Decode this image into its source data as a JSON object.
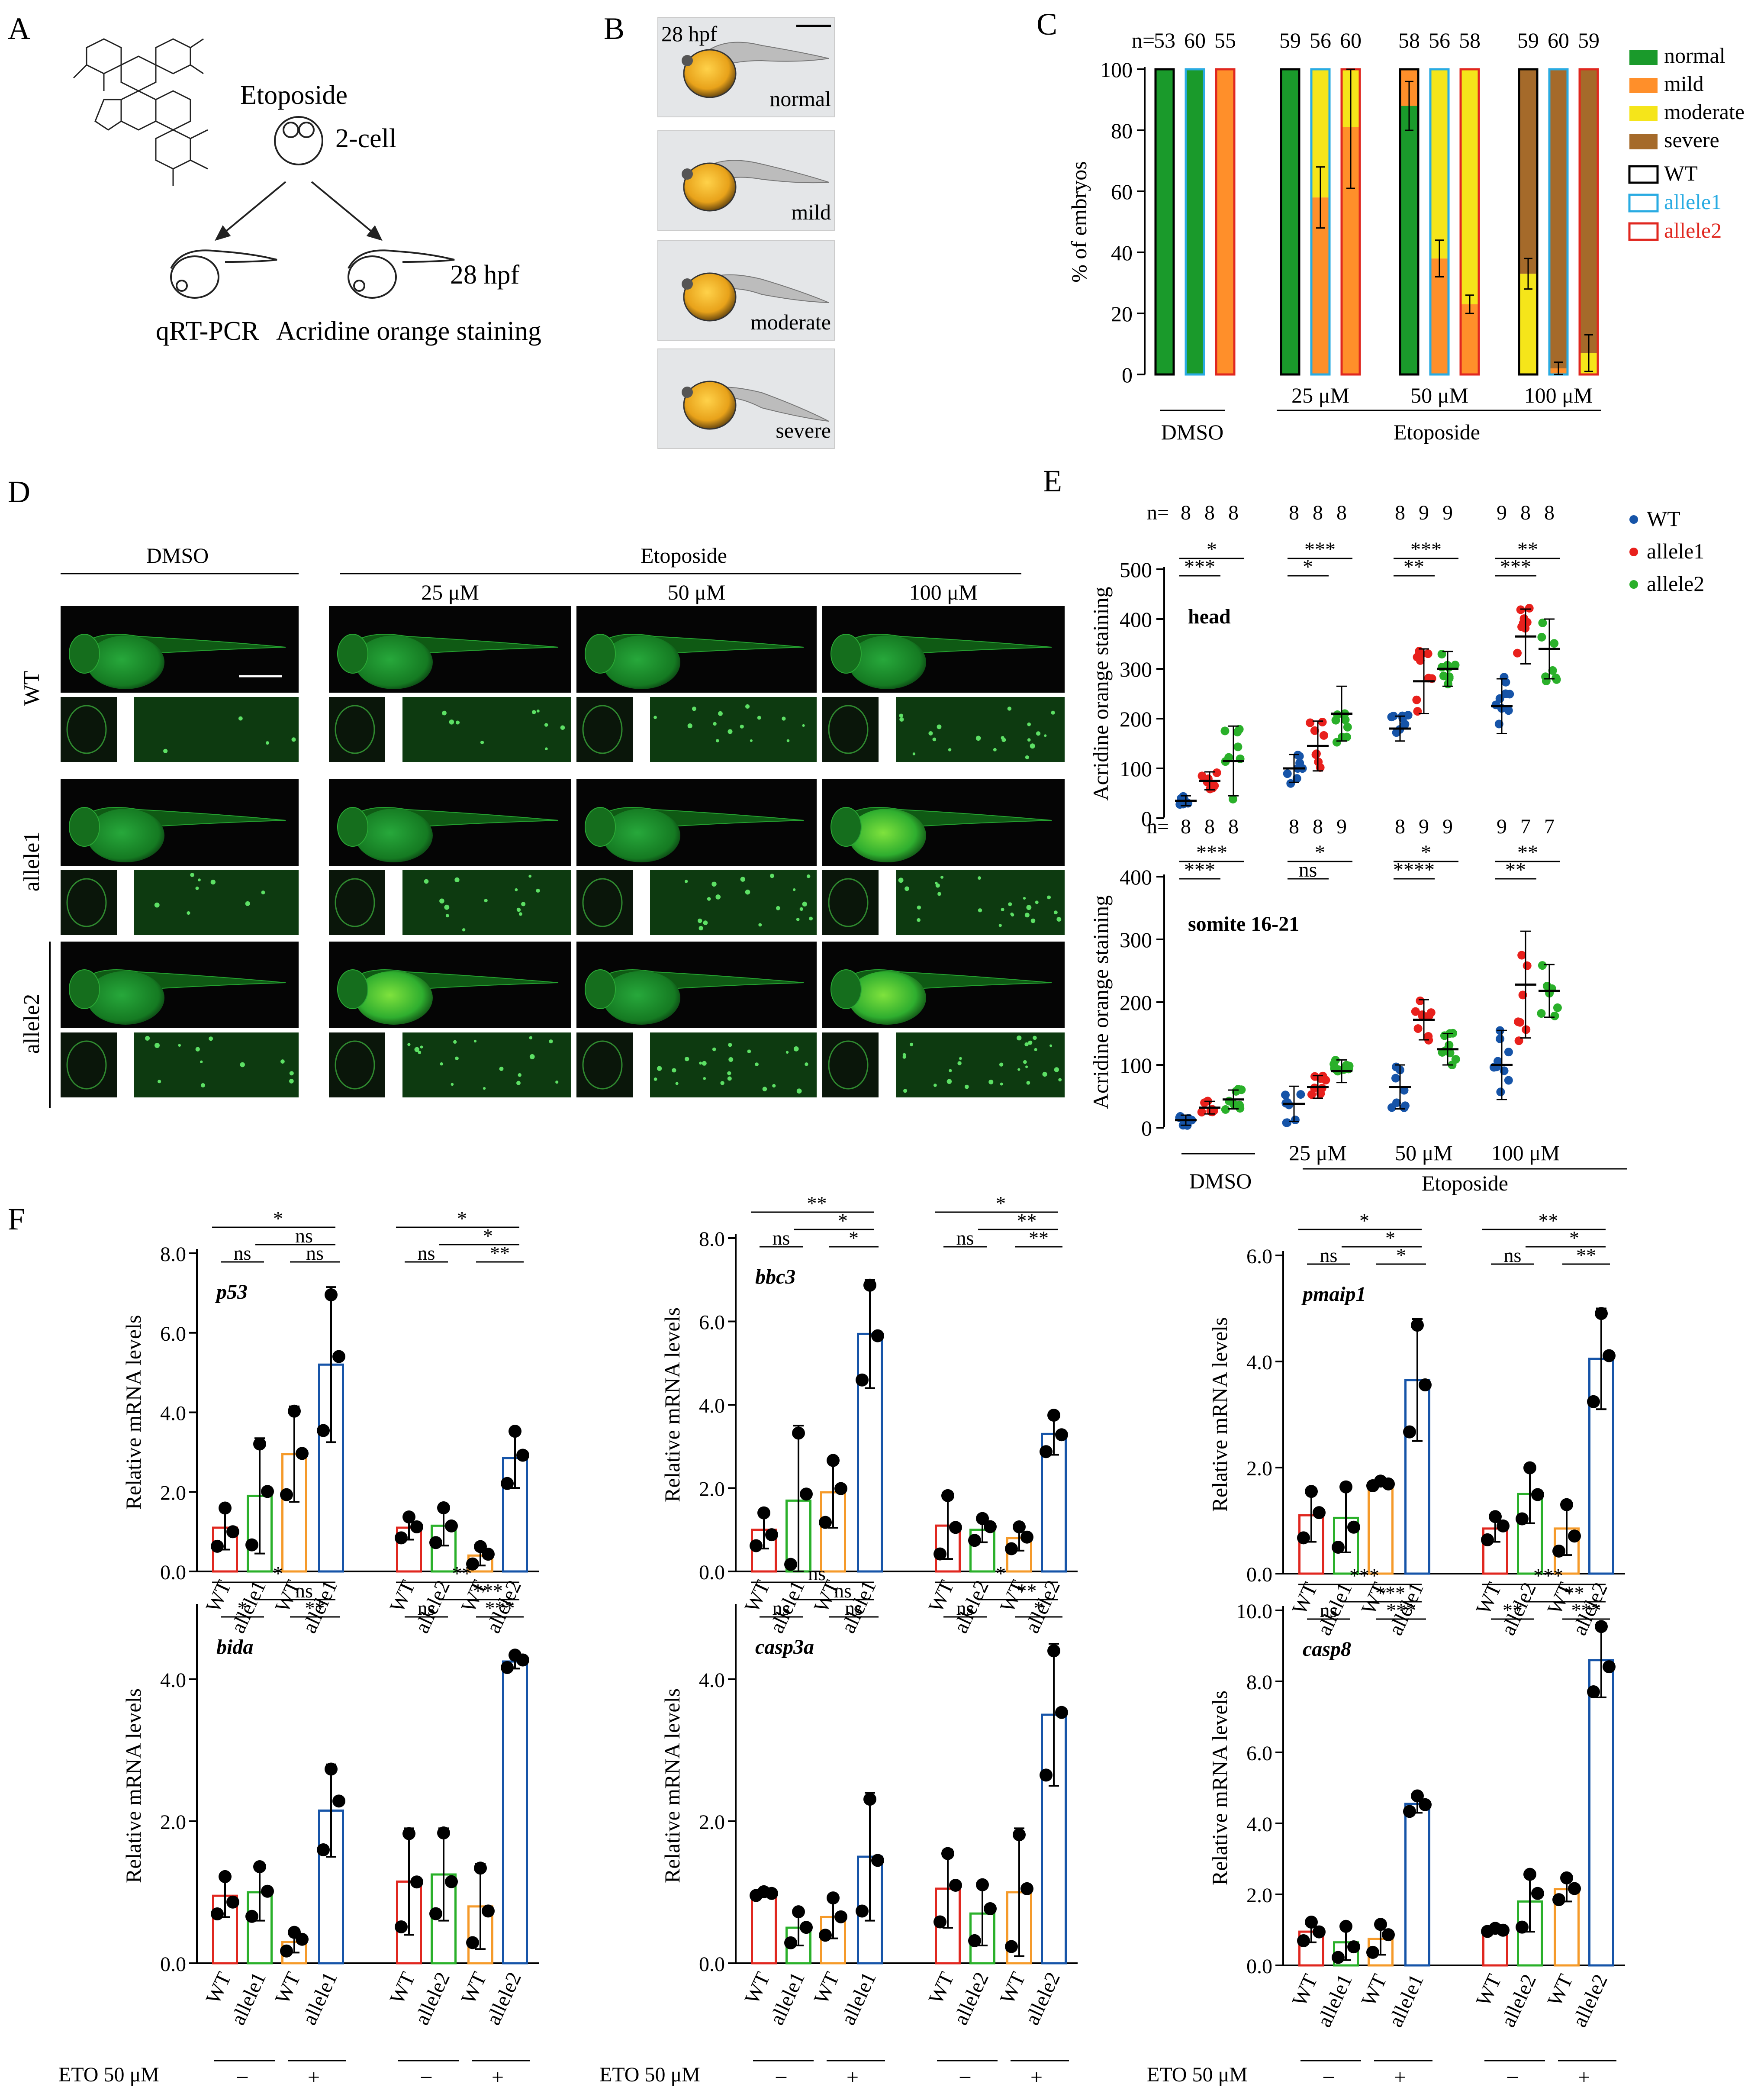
{
  "panel_letters": {
    "A": "A",
    "B": "B",
    "C": "C",
    "D": "D",
    "E": "E",
    "F": "F"
  },
  "panelA": {
    "compound": "Etoposide",
    "stage": "2-cell",
    "time": "28 hpf",
    "assay_left": "qRT-PCR",
    "assay_right": "Acridine orange staining"
  },
  "panelB": {
    "time": "28 hpf",
    "labels": [
      "normal",
      "mild",
      "moderate",
      "severe"
    ]
  },
  "panelC": {
    "n_prefix": "n=",
    "n_values": [
      "53",
      "60",
      "55",
      "59",
      "56",
      "60",
      "58",
      "56",
      "58",
      "59",
      "60",
      "59"
    ],
    "ylabel": "% of embryos",
    "yticks": [
      "0",
      "20",
      "40",
      "60",
      "80",
      "100"
    ],
    "group_dmso": "DMSO",
    "conc": [
      "25 μM",
      "50 μM",
      "100 μM"
    ],
    "treatment": "Etoposide",
    "legend_fill": [
      "normal",
      "mild",
      "moderate",
      "severe"
    ],
    "legend_border": [
      "WT",
      "allele1",
      "allele2"
    ]
  },
  "panelD": {
    "dmso": "DMSO",
    "treatment": "Etoposide",
    "conc": [
      "25 μM",
      "50 μM",
      "100 μM"
    ],
    "rows": [
      "WT",
      "allele1",
      "allele2"
    ]
  },
  "panelE": {
    "n_prefix": "n=",
    "head_n": [
      "8",
      "8",
      "8",
      "8",
      "8",
      "8",
      "8",
      "9",
      "9",
      "9",
      "8",
      "8"
    ],
    "somite_n": [
      "8",
      "8",
      "8",
      "8",
      "8",
      "9",
      "8",
      "9",
      "9",
      "9",
      "7",
      "7"
    ],
    "ylabel": "Acridine orange staining",
    "head_title": "head",
    "somite_title": "somite 16-21",
    "head_yticks": [
      "0",
      "100",
      "200",
      "300",
      "400",
      "500"
    ],
    "somite_yticks": [
      "0",
      "100",
      "200",
      "300",
      "400"
    ],
    "legend": [
      "WT",
      "allele1",
      "allele2"
    ],
    "group_dmso": "DMSO",
    "conc": [
      "25 μM",
      "50 μM",
      "100 μM"
    ],
    "treatment": "Etoposide",
    "head_sig": {
      "dmso": [
        "*",
        "***"
      ],
      "c25": [
        "***",
        "*"
      ],
      "c50": [
        "***",
        "**"
      ],
      "c100": [
        "**",
        "***"
      ]
    },
    "somite_sig": {
      "dmso": [
        "***",
        "***"
      ],
      "c25": [
        "*",
        "ns"
      ],
      "c50": [
        "*",
        "****"
      ],
      "c100": [
        "**",
        "**"
      ]
    }
  },
  "panelF": {
    "ylabel": "Relative mRNA levels",
    "eto": "ETO 50 μM",
    "minus": "–",
    "plus": "+",
    "xlabels_left": [
      "WT",
      "allele1",
      "WT",
      "allele1"
    ],
    "xlabels_right": [
      "WT",
      "allele2",
      "WT",
      "allele2"
    ]
  },
  "chart_data": [
    {
      "type": "bar",
      "title": "",
      "xlabel": "",
      "ylabel": "% of embryos",
      "stacked": true,
      "ylim": [
        0,
        100
      ],
      "categories": [
        "DMSO WT",
        "DMSO allele1",
        "DMSO allele2",
        "25 μM WT",
        "25 μM allele1",
        "25 μM allele2",
        "50 μM WT",
        "50 μM allele1",
        "50 μM allele2",
        "100 μM WT",
        "100 μM allele1",
        "100 μM allele2"
      ],
      "series": [
        {
          "name": "normal",
          "values": [
            100,
            100,
            0,
            100,
            0,
            0,
            88,
            0,
            0,
            0,
            0,
            0
          ]
        },
        {
          "name": "mild",
          "values": [
            0,
            0,
            100,
            0,
            58,
            81,
            12,
            38,
            23,
            0,
            2,
            0
          ]
        },
        {
          "name": "moderate",
          "values": [
            0,
            0,
            0,
            0,
            42,
            19,
            0,
            62,
            77,
            33,
            0,
            7
          ]
        },
        {
          "name": "severe",
          "values": [
            0,
            0,
            0,
            0,
            0,
            0,
            0,
            0,
            0,
            67,
            98,
            93
          ]
        }
      ],
      "legend": "right"
    },
    {
      "type": "scatter",
      "title": "head",
      "ylabel": "Acridine orange staining",
      "ylim": [
        0,
        500
      ],
      "categories": [
        "DMSO",
        "25 μM",
        "50 μM",
        "100 μM"
      ],
      "series": [
        {
          "name": "WT",
          "mean": [
            35,
            100,
            180,
            225
          ],
          "sd": [
            10,
            28,
            25,
            55
          ]
        },
        {
          "name": "allele1",
          "mean": [
            75,
            145,
            275,
            365
          ],
          "sd": [
            18,
            50,
            65,
            55
          ]
        },
        {
          "name": "allele2",
          "mean": [
            115,
            210,
            300,
            340
          ],
          "sd": [
            70,
            55,
            35,
            60
          ]
        }
      ]
    },
    {
      "type": "scatter",
      "title": "somite 16-21",
      "ylabel": "Acridine orange staining",
      "ylim": [
        0,
        400
      ],
      "categories": [
        "DMSO",
        "25 μM",
        "50 μM",
        "100 μM"
      ],
      "series": [
        {
          "name": "WT",
          "mean": [
            12,
            38,
            65,
            100
          ],
          "sd": [
            8,
            28,
            35,
            55
          ]
        },
        {
          "name": "allele1",
          "mean": [
            32,
            65,
            172,
            228
          ],
          "sd": [
            10,
            18,
            32,
            85
          ]
        },
        {
          "name": "allele2",
          "mean": [
            45,
            90,
            125,
            218
          ],
          "sd": [
            15,
            18,
            25,
            42
          ]
        }
      ]
    },
    {
      "type": "bar",
      "title": "p53",
      "ylabel": "Relative mRNA levels",
      "ylim": [
        0,
        8
      ],
      "yticks": [
        "0.0",
        "2.0",
        "4.0",
        "6.0",
        "8.0"
      ],
      "categories": [
        "WT –",
        "allele1 –",
        "WT +",
        "allele1 +",
        "WT –",
        "allele2 –",
        "WT +",
        "allele2 +"
      ],
      "values": [
        1.1,
        1.9,
        2.95,
        5.2,
        1.1,
        1.15,
        0.4,
        2.85
      ],
      "sd": [
        0.55,
        1.45,
        1.2,
        1.95,
        0.3,
        0.5,
        0.25,
        0.75
      ],
      "sig_left": [
        "*",
        "ns",
        "ns",
        "ns"
      ],
      "sig_right": [
        "*",
        "*",
        "ns",
        "**"
      ]
    },
    {
      "type": "bar",
      "title": "bbc3",
      "ylabel": "Relative mRNA levels",
      "ylim": [
        0,
        8
      ],
      "yticks": [
        "0.0",
        "2.0",
        "4.0",
        "6.0",
        "8.0"
      ],
      "categories": [
        "WT –",
        "allele1 –",
        "WT +",
        "allele1 +",
        "WT –",
        "allele2 –",
        "WT +",
        "allele2 +"
      ],
      "values": [
        1.0,
        1.7,
        1.9,
        5.7,
        1.1,
        1.0,
        0.8,
        3.3
      ],
      "sd": [
        0.45,
        1.8,
        0.85,
        1.3,
        0.8,
        0.3,
        0.3,
        0.5
      ],
      "sig_left": [
        "**",
        "*",
        "ns",
        "*"
      ],
      "sig_right": [
        "*",
        "**",
        "ns",
        "**"
      ]
    },
    {
      "type": "bar",
      "title": "pmaip1",
      "ylabel": "Relative mRNA levels",
      "ylim": [
        0,
        6
      ],
      "yticks": [
        "0.0",
        "2.0",
        "4.0",
        "6.0"
      ],
      "categories": [
        "WT –",
        "allele1 –",
        "WT +",
        "allele1 +",
        "WT –",
        "allele2 –",
        "WT +",
        "allele2 +"
      ],
      "values": [
        1.1,
        1.05,
        1.7,
        3.65,
        0.85,
        1.5,
        0.85,
        4.05
      ],
      "sd": [
        0.5,
        0.65,
        0.05,
        1.15,
        0.25,
        0.55,
        0.5,
        0.95
      ],
      "sig_left": [
        "*",
        "*",
        "ns",
        "*"
      ],
      "sig_right": [
        "**",
        "*",
        "ns",
        "**"
      ]
    },
    {
      "type": "bar",
      "title": "bida",
      "ylabel": "Relative mRNA levels",
      "ylim": [
        0,
        5
      ],
      "yticks": [
        "0.0",
        "2.0",
        "4.0"
      ],
      "categories": [
        "WT –",
        "allele1 –",
        "WT +",
        "allele1 +",
        "WT –",
        "allele2 –",
        "WT +",
        "allele2 +"
      ],
      "values": [
        0.95,
        1.0,
        0.3,
        2.15,
        1.15,
        1.25,
        0.8,
        4.25
      ],
      "sd": [
        0.3,
        0.4,
        0.15,
        0.65,
        0.75,
        0.65,
        0.6,
        0.1
      ],
      "sig_left": [
        "*",
        "ns",
        "*",
        "**"
      ],
      "sig_right": [
        "**",
        "***",
        "ns",
        "***"
      ]
    },
    {
      "type": "bar",
      "title": "casp3a",
      "ylabel": "Relative mRNA levels",
      "ylim": [
        0,
        5
      ],
      "yticks": [
        "0.0",
        "2.0",
        "4.0"
      ],
      "categories": [
        "WT –",
        "allele1 –",
        "WT +",
        "allele1 +",
        "WT –",
        "allele2 –",
        "WT +",
        "allele2 +"
      ],
      "values": [
        0.98,
        0.5,
        0.65,
        1.5,
        1.05,
        0.7,
        1.0,
        3.5
      ],
      "sd": [
        0.03,
        0.25,
        0.3,
        0.9,
        0.55,
        0.45,
        0.9,
        1.0
      ],
      "sig_left": [
        "ns",
        "ns",
        "ns",
        "ns"
      ],
      "sig_right": [
        "*",
        "**",
        "ns",
        "*"
      ]
    },
    {
      "type": "bar",
      "title": "casp8",
      "ylabel": "Relative mRNA levels",
      "ylim": [
        0,
        10
      ],
      "yticks": [
        "0.0",
        "2.0",
        "4.0",
        "6.0",
        "8.0",
        "10.0"
      ],
      "categories": [
        "WT –",
        "allele1 –",
        "WT +",
        "allele1 +",
        "WT –",
        "allele2 –",
        "WT +",
        "allele2 +"
      ],
      "values": [
        0.95,
        0.65,
        0.75,
        4.55,
        1.0,
        1.8,
        2.15,
        8.6
      ],
      "sd": [
        0.3,
        0.5,
        0.45,
        0.25,
        0.05,
        0.85,
        0.35,
        1.05
      ],
      "sig_left": [
        "***",
        "***",
        "ns",
        "***"
      ],
      "sig_right": [
        "***",
        "**",
        "**",
        "***"
      ]
    }
  ]
}
